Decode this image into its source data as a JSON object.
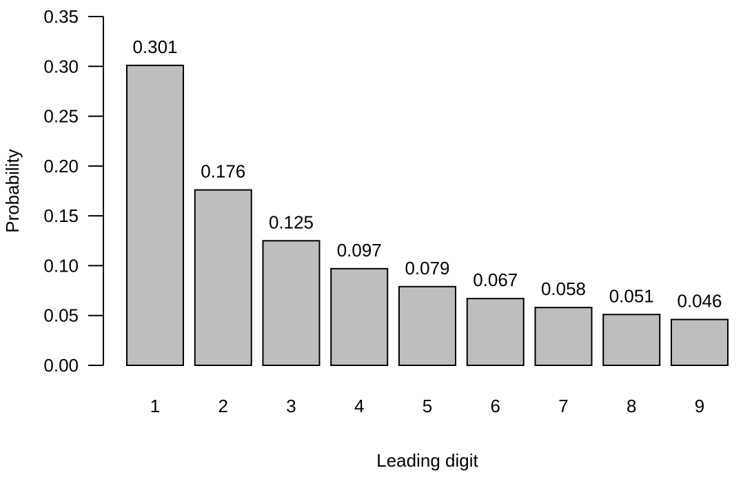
{
  "chart_data": {
    "type": "bar",
    "categories": [
      "1",
      "2",
      "3",
      "4",
      "5",
      "6",
      "7",
      "8",
      "9"
    ],
    "values": [
      0.301,
      0.176,
      0.125,
      0.097,
      0.079,
      0.067,
      0.058,
      0.051,
      0.046
    ],
    "value_labels": [
      "0.301",
      "0.176",
      "0.125",
      "0.097",
      "0.079",
      "0.067",
      "0.058",
      "0.051",
      "0.046"
    ],
    "xlabel": "Leading digit",
    "ylabel": "Probability",
    "ylim": [
      0,
      0.35
    ],
    "yticks": [
      0.0,
      0.05,
      0.1,
      0.15,
      0.2,
      0.25,
      0.3,
      0.35
    ],
    "ytick_labels": [
      "0.00",
      "0.05",
      "0.10",
      "0.15",
      "0.20",
      "0.25",
      "0.30",
      "0.35"
    ],
    "grid": false,
    "legend": "none",
    "colors": {
      "bar_fill": "#bebebe",
      "bar_stroke": "#000000",
      "axis": "#000000",
      "text": "#000000"
    }
  }
}
